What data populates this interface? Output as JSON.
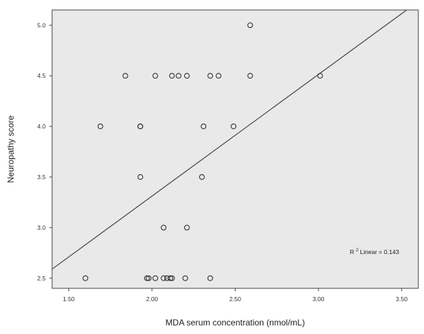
{
  "chart_data": {
    "type": "scatter",
    "title": "",
    "xlabel": "MDA serum concentration (nmol/mL)",
    "ylabel": "Neuropathy score",
    "xlim": [
      1.4,
      3.6
    ],
    "ylim": [
      2.4,
      5.15
    ],
    "xticks": [
      1.5,
      2.0,
      2.5,
      3.0,
      3.5
    ],
    "xtick_labels": [
      "1.50",
      "2.00",
      "2.50",
      "3.00",
      "3.50"
    ],
    "yticks": [
      2.5,
      3.0,
      3.5,
      4.0,
      4.5,
      5.0
    ],
    "ytick_labels": [
      "2.5",
      "3.0",
      "3.5",
      "4.0",
      "4.5",
      "5.0"
    ],
    "grid": false,
    "plot_background": "#e9e9e9",
    "marker_style": "open-circle",
    "series": [
      {
        "points": [
          [
            1.6,
            2.5
          ],
          [
            1.97,
            2.5
          ],
          [
            1.98,
            2.5
          ],
          [
            2.02,
            2.5
          ],
          [
            2.07,
            2.5
          ],
          [
            2.09,
            2.5
          ],
          [
            2.11,
            2.5
          ],
          [
            2.12,
            2.5
          ],
          [
            2.2,
            2.5
          ],
          [
            2.35,
            2.5
          ],
          [
            2.07,
            3.0
          ],
          [
            2.21,
            3.0
          ],
          [
            1.93,
            3.5
          ],
          [
            2.3,
            3.5
          ],
          [
            1.69,
            4.0
          ],
          [
            1.93,
            4.0
          ],
          [
            1.93,
            4.0
          ],
          [
            2.31,
            4.0
          ],
          [
            2.49,
            4.0
          ],
          [
            1.84,
            4.5
          ],
          [
            2.02,
            4.5
          ],
          [
            2.12,
            4.5
          ],
          [
            2.16,
            4.5
          ],
          [
            2.21,
            4.5
          ],
          [
            2.35,
            4.5
          ],
          [
            2.4,
            4.5
          ],
          [
            2.59,
            4.5
          ],
          [
            3.01,
            4.5
          ],
          [
            2.59,
            5.0
          ]
        ]
      }
    ],
    "fit_line": {
      "type": "linear",
      "points": [
        [
          1.4,
          2.59
        ],
        [
          3.53,
          5.15
        ]
      ]
    },
    "annotation": {
      "prefix": "R",
      "superscript": "2",
      "text": " Linear = 0.143"
    }
  }
}
